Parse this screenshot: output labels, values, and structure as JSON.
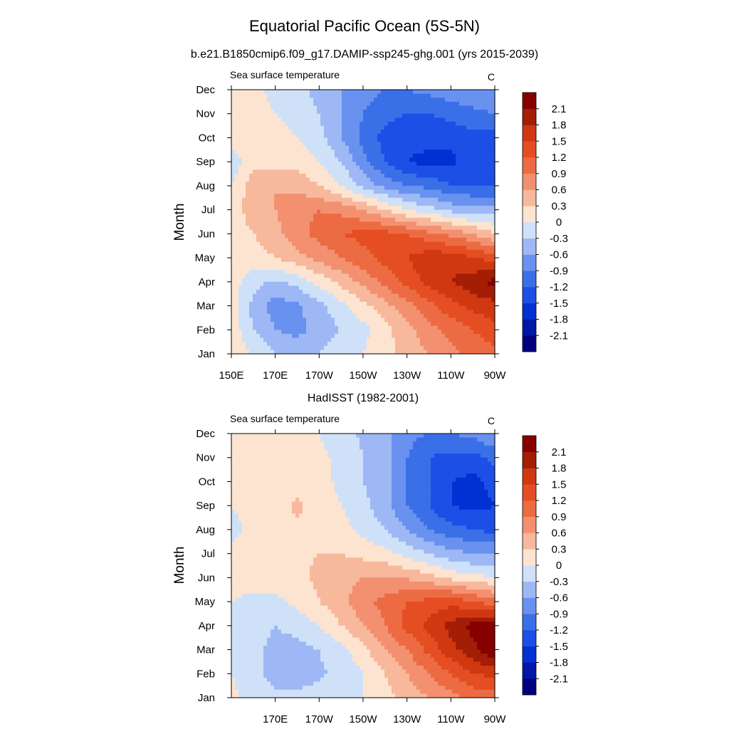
{
  "figure": {
    "title": "Equatorial Pacific Ocean (5S-5N)"
  },
  "chart_data": [
    {
      "type": "heatmap",
      "title": "b.e21.B1850cmip6.f09_g17.DAMIP-ssp245-ghg.001 (yrs 2015-2039)",
      "left_label": "Sea surface temperature",
      "units": "C",
      "ylabel": "Month",
      "xticks": [
        "150E",
        "170E",
        "170W",
        "150W",
        "130W",
        "110W",
        "90W"
      ],
      "xtick_lon": [
        150,
        170,
        190,
        210,
        230,
        250,
        270
      ],
      "yticks": [
        "Jan",
        "Feb",
        "Mar",
        "Apr",
        "May",
        "Jun",
        "Jul",
        "Aug",
        "Sep",
        "Oct",
        "Nov",
        "Dec"
      ],
      "xlim": [
        150,
        270
      ],
      "contour_levels": [
        -2.1,
        -1.8,
        -1.5,
        -1.2,
        -0.9,
        -0.6,
        -0.3,
        0,
        0.3,
        0.6,
        0.9,
        1.2,
        1.5,
        1.8,
        2.1
      ],
      "colorbar_labels": [
        "2.1",
        "1.8",
        "1.5",
        "1.2",
        "0.9",
        "0.6",
        "0.3",
        "0",
        "-0.3",
        "-0.6",
        "-0.9",
        "-1.2",
        "-1.5",
        "-1.8",
        "-2.1"
      ],
      "lon": [
        150,
        160,
        170,
        180,
        190,
        200,
        210,
        220,
        230,
        240,
        250,
        260,
        270
      ],
      "values": [
        [
          0.15,
          0.0,
          -0.3,
          -0.4,
          -0.3,
          -0.1,
          0.0,
          0.2,
          0.4,
          0.6,
          0.8,
          1.0,
          1.1
        ],
        [
          0.2,
          -0.3,
          -0.6,
          -0.7,
          -0.5,
          -0.3,
          -0.1,
          0.2,
          0.5,
          0.8,
          1.0,
          1.2,
          1.4
        ],
        [
          0.15,
          -0.4,
          -0.75,
          -0.65,
          -0.4,
          -0.1,
          0.2,
          0.5,
          0.8,
          1.1,
          1.4,
          1.6,
          1.7
        ],
        [
          0.15,
          -0.2,
          -0.35,
          -0.2,
          0.1,
          0.4,
          0.7,
          1.0,
          1.3,
          1.6,
          1.8,
          2.0,
          2.2
        ],
        [
          0.2,
          0.15,
          0.3,
          0.5,
          0.7,
          0.9,
          1.1,
          1.3,
          1.5,
          1.7,
          1.7,
          1.5,
          1.4
        ],
        [
          0.2,
          0.3,
          0.5,
          0.8,
          1.0,
          1.2,
          1.3,
          1.3,
          1.2,
          1.0,
          0.8,
          0.6,
          0.3
        ],
        [
          0.2,
          0.4,
          0.6,
          0.8,
          0.9,
          0.8,
          0.6,
          0.3,
          0.0,
          -0.2,
          -0.4,
          -0.5,
          -0.5
        ],
        [
          0.0,
          0.5,
          0.6,
          0.5,
          0.3,
          0.0,
          -0.4,
          -0.7,
          -0.9,
          -1.0,
          -1.2,
          -1.2,
          -1.2
        ],
        [
          -0.2,
          0.2,
          0.2,
          0.2,
          0.0,
          -0.3,
          -0.8,
          -1.2,
          -1.5,
          -1.6,
          -1.6,
          -1.3,
          -1.4
        ],
        [
          0.2,
          0.1,
          0.1,
          0.0,
          -0.2,
          -0.6,
          -1.0,
          -1.3,
          -1.4,
          -1.4,
          -1.4,
          -1.3,
          -1.3
        ],
        [
          0.2,
          0.1,
          0.0,
          -0.1,
          -0.3,
          -0.6,
          -0.9,
          -1.1,
          -1.2,
          -1.2,
          -1.1,
          -1.0,
          -0.9
        ],
        [
          0.2,
          0.1,
          -0.1,
          -0.2,
          -0.4,
          -0.6,
          -0.8,
          -0.9,
          -0.9,
          -0.8,
          -0.7,
          -0.6,
          -0.6
        ]
      ]
    },
    {
      "type": "heatmap",
      "title": "HadISST (1982-2001)",
      "left_label": "Sea surface temperature",
      "units": "C",
      "ylabel": "Month",
      "xticks": [
        "170E",
        "170W",
        "150W",
        "130W",
        "110W",
        "90W"
      ],
      "xtick_lon": [
        170,
        190,
        210,
        230,
        250,
        270
      ],
      "yticks": [
        "Jan",
        "Feb",
        "Mar",
        "Apr",
        "May",
        "Jun",
        "Jul",
        "Aug",
        "Sep",
        "Oct",
        "Nov",
        "Dec"
      ],
      "xlim": [
        150,
        270
      ],
      "contour_levels": [
        -2.1,
        -1.8,
        -1.5,
        -1.2,
        -0.9,
        -0.6,
        -0.3,
        0,
        0.3,
        0.6,
        0.9,
        1.2,
        1.5,
        1.8,
        2.1
      ],
      "colorbar_labels": [
        "2.1",
        "1.8",
        "1.5",
        "1.2",
        "0.9",
        "0.6",
        "0.3",
        "0",
        "-0.3",
        "-0.6",
        "-0.9",
        "-1.2",
        "-1.5",
        "-1.8",
        "-2.1"
      ],
      "lon": [
        150,
        160,
        170,
        180,
        190,
        200,
        210,
        220,
        230,
        240,
        250,
        260,
        270
      ],
      "values": [
        [
          0.1,
          -0.2,
          -0.25,
          -0.25,
          -0.2,
          -0.1,
          0.0,
          0.2,
          0.4,
          0.6,
          0.8,
          1.0,
          1.0
        ],
        [
          0.0,
          -0.2,
          -0.4,
          -0.4,
          -0.35,
          -0.2,
          0.0,
          0.3,
          0.6,
          0.9,
          1.2,
          1.5,
          1.6
        ],
        [
          -0.1,
          -0.2,
          -0.4,
          -0.4,
          -0.3,
          -0.1,
          0.2,
          0.6,
          0.9,
          1.3,
          1.7,
          2.0,
          2.4
        ],
        [
          -0.1,
          -0.2,
          -0.3,
          -0.2,
          0.0,
          0.3,
          0.6,
          0.9,
          1.3,
          1.6,
          1.9,
          2.2,
          2.3
        ],
        [
          0.0,
          -0.1,
          -0.1,
          0.1,
          0.3,
          0.5,
          0.8,
          1.0,
          1.2,
          1.3,
          1.4,
          1.2,
          1.0
        ],
        [
          0.1,
          0.2,
          0.2,
          0.25,
          0.35,
          0.5,
          0.6,
          0.6,
          0.55,
          0.4,
          0.2,
          0.1,
          0.0
        ],
        [
          0.1,
          0.2,
          0.2,
          0.25,
          0.3,
          0.3,
          0.2,
          0.1,
          -0.1,
          -0.3,
          -0.5,
          -0.6,
          -0.6
        ],
        [
          -0.1,
          0.1,
          0.2,
          0.25,
          0.2,
          0.1,
          -0.1,
          -0.3,
          -0.6,
          -0.9,
          -1.1,
          -1.2,
          -1.3
        ],
        [
          0.0,
          0.1,
          0.2,
          0.35,
          0.2,
          0.0,
          -0.2,
          -0.5,
          -0.9,
          -1.2,
          -1.5,
          -1.6,
          -1.5
        ],
        [
          0.1,
          0.1,
          0.2,
          0.2,
          0.15,
          -0.1,
          -0.3,
          -0.5,
          -0.9,
          -1.2,
          -1.5,
          -1.6,
          -1.4
        ],
        [
          0.1,
          0.15,
          0.2,
          0.2,
          0.1,
          -0.1,
          -0.3,
          -0.5,
          -0.9,
          -1.2,
          -1.3,
          -1.3,
          -1.1
        ],
        [
          0.1,
          0.15,
          0.2,
          0.2,
          0.0,
          -0.2,
          -0.35,
          -0.5,
          -0.8,
          -0.9,
          -0.9,
          -0.8,
          -0.6
        ]
      ]
    }
  ],
  "palette": {
    "colors": [
      "#00007f",
      "#0017a8",
      "#0330d2",
      "#1c4fe6",
      "#3a6fe8",
      "#6991ef",
      "#9db8f5",
      "#cfe1f8",
      "#fde4d0",
      "#f7b89c",
      "#f39070",
      "#ec6b43",
      "#e54e22",
      "#cf3811",
      "#a41d05",
      "#870000"
    ]
  }
}
